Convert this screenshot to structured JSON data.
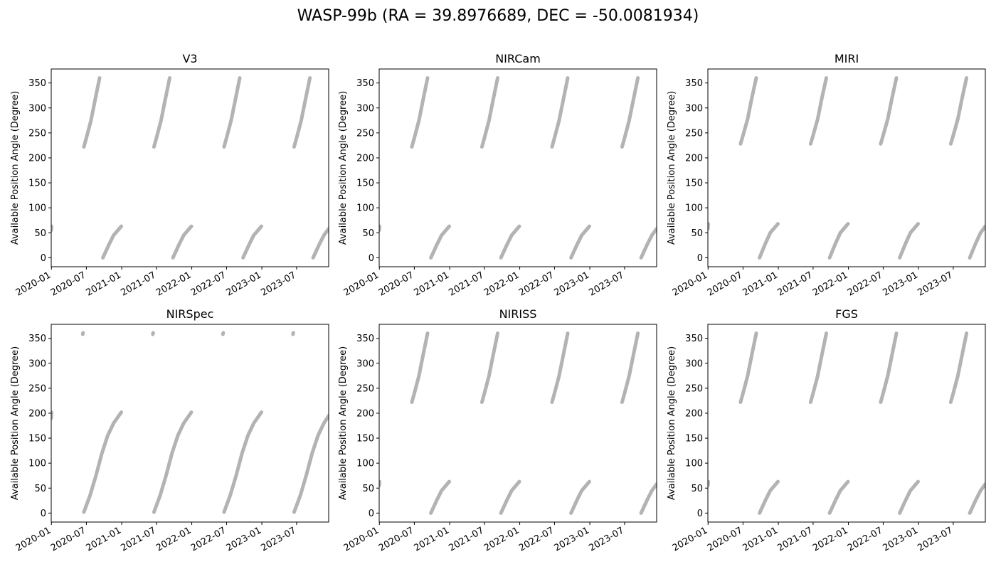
{
  "figure": {
    "title": "WASP-99b (RA = 39.8976689, DEC = -50.0081934)"
  },
  "chart_data": [
    {
      "type": "scatter",
      "title": "V3",
      "ylabel": "Available Position Angle (Degree)",
      "xlim": [
        "2019-12-31",
        "2023-12-15"
      ],
      "ylim": [
        -18,
        378
      ],
      "xticks": [
        "2020-01",
        "2020-07",
        "2021-01",
        "2021-07",
        "2022-01",
        "2022-07",
        "2023-01",
        "2023-07"
      ],
      "yticks": [
        0,
        50,
        100,
        150,
        200,
        250,
        300,
        350
      ],
      "marker_color": "#b3b3b3",
      "series": [
        {
          "x": [
            "2019-12-31",
            "2020-01-02"
          ],
          "y": [
            55,
            63
          ]
        },
        {
          "x": [
            "2020-06-18",
            "2020-07-01",
            "2020-07-25",
            "2020-08-15",
            "2020-09-08"
          ],
          "y": [
            222,
            240,
            275,
            315,
            360
          ]
        },
        {
          "x": [
            "2020-09-25",
            "2020-10-25",
            "2020-11-20",
            "2020-12-30"
          ],
          "y": [
            0,
            25,
            45,
            63
          ]
        },
        {
          "x": [
            "2021-06-18",
            "2021-07-01",
            "2021-07-25",
            "2021-08-15",
            "2021-09-08"
          ],
          "y": [
            222,
            240,
            275,
            315,
            360
          ]
        },
        {
          "x": [
            "2021-09-25",
            "2021-10-25",
            "2021-11-20",
            "2021-12-30"
          ],
          "y": [
            0,
            25,
            45,
            63
          ]
        },
        {
          "x": [
            "2022-06-18",
            "2022-07-01",
            "2022-07-25",
            "2022-08-15",
            "2022-09-08"
          ],
          "y": [
            222,
            240,
            275,
            315,
            360
          ]
        },
        {
          "x": [
            "2022-09-25",
            "2022-10-25",
            "2022-11-20",
            "2022-12-30"
          ],
          "y": [
            0,
            25,
            45,
            63
          ]
        },
        {
          "x": [
            "2023-06-18",
            "2023-07-01",
            "2023-07-25",
            "2023-08-15",
            "2023-09-08"
          ],
          "y": [
            222,
            240,
            275,
            315,
            360
          ]
        },
        {
          "x": [
            "2023-09-25",
            "2023-10-25",
            "2023-11-20",
            "2023-12-15"
          ],
          "y": [
            0,
            25,
            45,
            58
          ]
        }
      ]
    },
    {
      "type": "scatter",
      "title": "NIRCam",
      "ylabel": "Available Position Angle (Degree)",
      "xlim": [
        "2019-12-31",
        "2023-12-15"
      ],
      "ylim": [
        -18,
        378
      ],
      "xticks": [
        "2020-01",
        "2020-07",
        "2021-01",
        "2021-07",
        "2022-01",
        "2022-07",
        "2023-01",
        "2023-07"
      ],
      "yticks": [
        0,
        50,
        100,
        150,
        200,
        250,
        300,
        350
      ],
      "marker_color": "#b3b3b3",
      "series": [
        {
          "x": [
            "2019-12-31",
            "2020-01-02"
          ],
          "y": [
            55,
            63
          ]
        },
        {
          "x": [
            "2020-06-18",
            "2020-07-01",
            "2020-07-25",
            "2020-08-15",
            "2020-09-08"
          ],
          "y": [
            222,
            240,
            275,
            315,
            360
          ]
        },
        {
          "x": [
            "2020-09-25",
            "2020-10-25",
            "2020-11-20",
            "2020-12-30"
          ],
          "y": [
            0,
            25,
            45,
            63
          ]
        },
        {
          "x": [
            "2021-06-18",
            "2021-07-01",
            "2021-07-25",
            "2021-08-15",
            "2021-09-08"
          ],
          "y": [
            222,
            240,
            275,
            315,
            360
          ]
        },
        {
          "x": [
            "2021-09-25",
            "2021-10-25",
            "2021-11-20",
            "2021-12-30"
          ],
          "y": [
            0,
            25,
            45,
            63
          ]
        },
        {
          "x": [
            "2022-06-18",
            "2022-07-01",
            "2022-07-25",
            "2022-08-15",
            "2022-09-08"
          ],
          "y": [
            222,
            240,
            275,
            315,
            360
          ]
        },
        {
          "x": [
            "2022-09-25",
            "2022-10-25",
            "2022-11-20",
            "2022-12-30"
          ],
          "y": [
            0,
            25,
            45,
            63
          ]
        },
        {
          "x": [
            "2023-06-18",
            "2023-07-01",
            "2023-07-25",
            "2023-08-15",
            "2023-09-08"
          ],
          "y": [
            222,
            240,
            275,
            315,
            360
          ]
        },
        {
          "x": [
            "2023-09-25",
            "2023-10-25",
            "2023-11-20",
            "2023-12-15"
          ],
          "y": [
            0,
            25,
            45,
            58
          ]
        }
      ]
    },
    {
      "type": "scatter",
      "title": "MIRI",
      "ylabel": "Available Position Angle (Degree)",
      "xlim": [
        "2019-12-31",
        "2023-12-15"
      ],
      "ylim": [
        -18,
        378
      ],
      "xticks": [
        "2020-01",
        "2020-07",
        "2021-01",
        "2021-07",
        "2022-01",
        "2022-07",
        "2023-01",
        "2023-07"
      ],
      "yticks": [
        0,
        50,
        100,
        150,
        200,
        250,
        300,
        350
      ],
      "marker_color": "#b3b3b3",
      "series": [
        {
          "x": [
            "2019-12-31",
            "2020-01-02"
          ],
          "y": [
            58,
            68
          ]
        },
        {
          "x": [
            "2020-06-18",
            "2020-07-01",
            "2020-07-25",
            "2020-08-15",
            "2020-09-08"
          ],
          "y": [
            228,
            245,
            278,
            318,
            360
          ]
        },
        {
          "x": [
            "2020-09-25",
            "2020-10-25",
            "2020-11-20",
            "2020-12-30"
          ],
          "y": [
            0,
            28,
            50,
            68
          ]
        },
        {
          "x": [
            "2021-06-18",
            "2021-07-01",
            "2021-07-25",
            "2021-08-15",
            "2021-09-08"
          ],
          "y": [
            228,
            245,
            278,
            318,
            360
          ]
        },
        {
          "x": [
            "2021-09-25",
            "2021-10-25",
            "2021-11-20",
            "2021-12-30"
          ],
          "y": [
            0,
            28,
            50,
            68
          ]
        },
        {
          "x": [
            "2022-06-18",
            "2022-07-01",
            "2022-07-25",
            "2022-08-15",
            "2022-09-08"
          ],
          "y": [
            228,
            245,
            278,
            318,
            360
          ]
        },
        {
          "x": [
            "2022-09-25",
            "2022-10-25",
            "2022-11-20",
            "2022-12-30"
          ],
          "y": [
            0,
            28,
            50,
            68
          ]
        },
        {
          "x": [
            "2023-06-18",
            "2023-07-01",
            "2023-07-25",
            "2023-08-15",
            "2023-09-08"
          ],
          "y": [
            228,
            245,
            278,
            318,
            360
          ]
        },
        {
          "x": [
            "2023-09-25",
            "2023-10-25",
            "2023-11-20",
            "2023-12-15"
          ],
          "y": [
            0,
            28,
            50,
            63
          ]
        }
      ]
    },
    {
      "type": "scatter",
      "title": "NIRSpec",
      "ylabel": "Available Position Angle (Degree)",
      "xlim": [
        "2019-12-31",
        "2023-12-15"
      ],
      "ylim": [
        -18,
        378
      ],
      "xticks": [
        "2020-01",
        "2020-07",
        "2021-01",
        "2021-07",
        "2022-01",
        "2022-07",
        "2023-01",
        "2023-07"
      ],
      "yticks": [
        0,
        50,
        100,
        150,
        200,
        250,
        300,
        350
      ],
      "marker_color": "#b3b3b3",
      "series": [
        {
          "x": [
            "2019-12-31",
            "2020-01-02"
          ],
          "y": [
            190,
            202
          ]
        },
        {
          "x": [
            "2020-06-12",
            "2020-06-14"
          ],
          "y": [
            358,
            361
          ]
        },
        {
          "x": [
            "2020-06-18",
            "2020-07-20",
            "2020-08-20",
            "2020-09-20",
            "2020-10-20",
            "2020-11-20",
            "2020-12-30"
          ],
          "y": [
            2,
            35,
            75,
            120,
            155,
            180,
            202
          ]
        },
        {
          "x": [
            "2021-06-12",
            "2021-06-14"
          ],
          "y": [
            358,
            361
          ]
        },
        {
          "x": [
            "2021-06-18",
            "2021-07-20",
            "2021-08-20",
            "2021-09-20",
            "2021-10-20",
            "2021-11-20",
            "2021-12-30"
          ],
          "y": [
            2,
            35,
            75,
            120,
            155,
            180,
            202
          ]
        },
        {
          "x": [
            "2022-06-12",
            "2022-06-14"
          ],
          "y": [
            358,
            361
          ]
        },
        {
          "x": [
            "2022-06-18",
            "2022-07-20",
            "2022-08-20",
            "2022-09-20",
            "2022-10-20",
            "2022-11-20",
            "2022-12-30"
          ],
          "y": [
            2,
            35,
            75,
            120,
            155,
            180,
            202
          ]
        },
        {
          "x": [
            "2023-06-12",
            "2023-06-14"
          ],
          "y": [
            358,
            361
          ]
        },
        {
          "x": [
            "2023-06-18",
            "2023-07-20",
            "2023-08-20",
            "2023-09-20",
            "2023-10-20",
            "2023-11-20",
            "2023-12-15"
          ],
          "y": [
            2,
            35,
            75,
            120,
            155,
            180,
            195
          ]
        }
      ]
    },
    {
      "type": "scatter",
      "title": "NIRISS",
      "ylabel": "Available Position Angle (Degree)",
      "xlim": [
        "2019-12-31",
        "2023-12-15"
      ],
      "ylim": [
        -18,
        378
      ],
      "xticks": [
        "2020-01",
        "2020-07",
        "2021-01",
        "2021-07",
        "2022-01",
        "2022-07",
        "2023-01",
        "2023-07"
      ],
      "yticks": [
        0,
        50,
        100,
        150,
        200,
        250,
        300,
        350
      ],
      "marker_color": "#b3b3b3",
      "series": [
        {
          "x": [
            "2019-12-31",
            "2020-01-02"
          ],
          "y": [
            55,
            63
          ]
        },
        {
          "x": [
            "2020-06-18",
            "2020-07-01",
            "2020-07-25",
            "2020-08-15",
            "2020-09-08"
          ],
          "y": [
            222,
            240,
            275,
            315,
            360
          ]
        },
        {
          "x": [
            "2020-09-25",
            "2020-10-25",
            "2020-11-20",
            "2020-12-30"
          ],
          "y": [
            0,
            25,
            45,
            63
          ]
        },
        {
          "x": [
            "2021-06-18",
            "2021-07-01",
            "2021-07-25",
            "2021-08-15",
            "2021-09-08"
          ],
          "y": [
            222,
            240,
            275,
            315,
            360
          ]
        },
        {
          "x": [
            "2021-09-25",
            "2021-10-25",
            "2021-11-20",
            "2021-12-30"
          ],
          "y": [
            0,
            25,
            45,
            63
          ]
        },
        {
          "x": [
            "2022-06-18",
            "2022-07-01",
            "2022-07-25",
            "2022-08-15",
            "2022-09-08"
          ],
          "y": [
            222,
            240,
            275,
            315,
            360
          ]
        },
        {
          "x": [
            "2022-09-25",
            "2022-10-25",
            "2022-11-20",
            "2022-12-30"
          ],
          "y": [
            0,
            25,
            45,
            63
          ]
        },
        {
          "x": [
            "2023-06-18",
            "2023-07-01",
            "2023-07-25",
            "2023-08-15",
            "2023-09-08"
          ],
          "y": [
            222,
            240,
            275,
            315,
            360
          ]
        },
        {
          "x": [
            "2023-09-25",
            "2023-10-25",
            "2023-11-20",
            "2023-12-15"
          ],
          "y": [
            0,
            25,
            45,
            58
          ]
        }
      ]
    },
    {
      "type": "scatter",
      "title": "FGS",
      "ylabel": "Available Position Angle (Degree)",
      "xlim": [
        "2019-12-31",
        "2023-12-15"
      ],
      "ylim": [
        -18,
        378
      ],
      "xticks": [
        "2020-01",
        "2020-07",
        "2021-01",
        "2021-07",
        "2022-01",
        "2022-07",
        "2023-01",
        "2023-07"
      ],
      "yticks": [
        0,
        50,
        100,
        150,
        200,
        250,
        300,
        350
      ],
      "marker_color": "#b3b3b3",
      "series": [
        {
          "x": [
            "2019-12-31",
            "2020-01-02"
          ],
          "y": [
            55,
            63
          ]
        },
        {
          "x": [
            "2020-06-18",
            "2020-07-01",
            "2020-07-25",
            "2020-08-15",
            "2020-09-08"
          ],
          "y": [
            222,
            240,
            275,
            315,
            360
          ]
        },
        {
          "x": [
            "2020-09-25",
            "2020-10-25",
            "2020-11-20",
            "2020-12-30"
          ],
          "y": [
            0,
            25,
            45,
            63
          ]
        },
        {
          "x": [
            "2021-06-18",
            "2021-07-01",
            "2021-07-25",
            "2021-08-15",
            "2021-09-08"
          ],
          "y": [
            222,
            240,
            275,
            315,
            360
          ]
        },
        {
          "x": [
            "2021-09-25",
            "2021-10-25",
            "2021-11-20",
            "2021-12-30"
          ],
          "y": [
            0,
            25,
            45,
            63
          ]
        },
        {
          "x": [
            "2022-06-18",
            "2022-07-01",
            "2022-07-25",
            "2022-08-15",
            "2022-09-08"
          ],
          "y": [
            222,
            240,
            275,
            315,
            360
          ]
        },
        {
          "x": [
            "2022-09-25",
            "2022-10-25",
            "2022-11-20",
            "2022-12-30"
          ],
          "y": [
            0,
            25,
            45,
            63
          ]
        },
        {
          "x": [
            "2023-06-18",
            "2023-07-01",
            "2023-07-25",
            "2023-08-15",
            "2023-09-08"
          ],
          "y": [
            222,
            240,
            275,
            315,
            360
          ]
        },
        {
          "x": [
            "2023-09-25",
            "2023-10-25",
            "2023-11-20",
            "2023-12-15"
          ],
          "y": [
            0,
            25,
            45,
            58
          ]
        }
      ]
    }
  ]
}
